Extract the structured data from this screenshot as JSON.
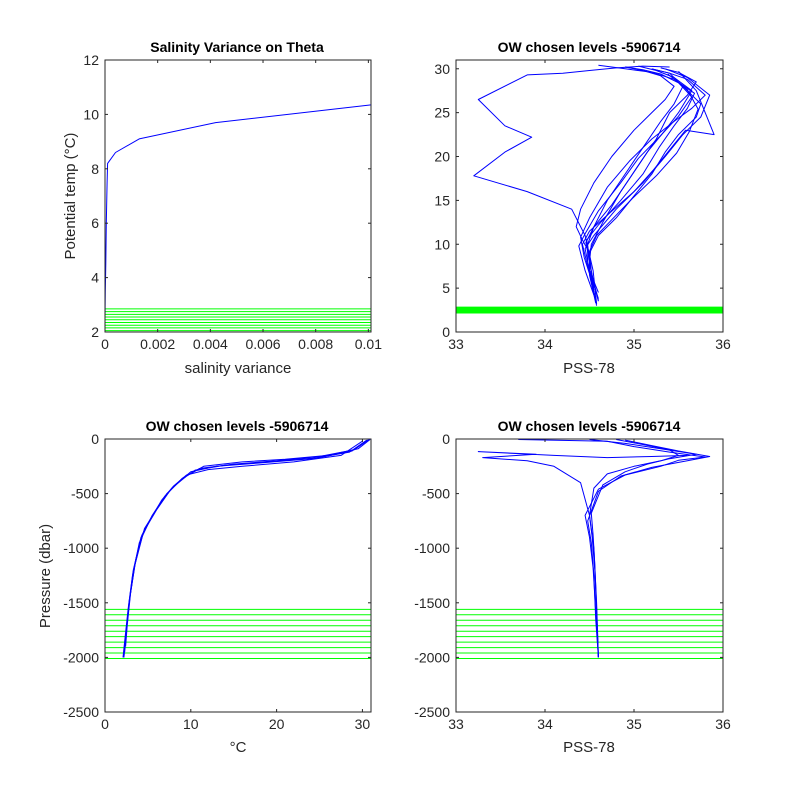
{
  "colors": {
    "profile": "#0000ff",
    "chosen_levels": "#00ff00",
    "axes": "#262626"
  },
  "chart_data": [
    {
      "type": "line",
      "title": "Salinity Variance on Theta",
      "xlabel": "salinity variance",
      "ylabel": "Potential temp (°C)",
      "xlim": [
        0,
        0.0101
      ],
      "ylim": [
        2,
        12
      ],
      "xticks": [
        0,
        0.002,
        0.004,
        0.006,
        0.008,
        0.01
      ],
      "xticklabels": [
        "0",
        "0.002",
        "0.004",
        "0.006",
        "0.008",
        "0.01"
      ],
      "yticks": [
        2,
        4,
        6,
        8,
        10,
        12
      ],
      "yticklabels": [
        "2",
        "4",
        "6",
        "8",
        "10",
        "12"
      ],
      "grid": false,
      "series": [
        {
          "x": [
            0,
            1e-05,
            3e-05,
            5e-05,
            8e-05,
            0.0001,
            0.0004,
            0.0013,
            0.0042,
            0.0101
          ],
          "y": [
            2.5,
            3.5,
            4.5,
            6.0,
            7.5,
            8.2,
            8.6,
            9.1,
            9.7,
            10.35
          ]
        }
      ],
      "chosen_levels": [
        2.05,
        2.15,
        2.25,
        2.35,
        2.45,
        2.55,
        2.65,
        2.75,
        2.85
      ]
    },
    {
      "type": "line",
      "title": "OW chosen levels -5906714",
      "xlabel": "PSS-78",
      "ylabel": "",
      "xlim": [
        33,
        36
      ],
      "ylim": [
        0,
        31
      ],
      "xticks": [
        33,
        34,
        35,
        36
      ],
      "xticklabels": [
        "33",
        "34",
        "35",
        "36"
      ],
      "yticks": [
        0,
        5,
        10,
        15,
        20,
        25,
        30
      ],
      "yticklabels": [
        "0",
        "5",
        "10",
        "15",
        "20",
        "25",
        "30"
      ],
      "grid": false,
      "series": [
        {
          "x": [
            34.58,
            34.54,
            34.5,
            34.5,
            34.42,
            34.35,
            34.4,
            34.55,
            34.75,
            35.0,
            35.2,
            35.35,
            35.45,
            35.3,
            35.1,
            34.9
          ],
          "y": [
            3,
            5,
            7,
            9,
            10.5,
            12,
            14,
            17,
            20,
            23,
            25,
            26.5,
            28,
            29.2,
            29.8,
            30.2
          ]
        },
        {
          "x": [
            34.56,
            34.52,
            34.48,
            34.48,
            34.55,
            34.7,
            34.9,
            35.1,
            35.3,
            35.45,
            35.55,
            35.4,
            35.2
          ],
          "y": [
            4,
            6,
            8,
            10,
            12,
            15,
            18,
            21,
            24,
            26,
            28,
            29.5,
            30
          ]
        },
        {
          "x": [
            34.6,
            34.55,
            34.5,
            34.52,
            34.65,
            34.85,
            35.05,
            35.25,
            35.4,
            35.6,
            35.7,
            35.5,
            35.3
          ],
          "y": [
            3.5,
            5.5,
            8,
            10,
            12.5,
            16,
            19,
            22,
            25,
            27,
            28.5,
            29.6,
            30.1
          ]
        },
        {
          "x": [
            34.6,
            34.5,
            34.45,
            34.55,
            34.8,
            35.1,
            35.35,
            35.55,
            35.75,
            35.85,
            35.6,
            35.35
          ],
          "y": [
            4.5,
            7,
            9.5,
            11,
            14,
            17,
            20,
            22.5,
            24.5,
            27,
            29,
            30
          ]
        },
        {
          "x": [
            34.58,
            34.52,
            34.44,
            34.4,
            34.5,
            34.7,
            34.95,
            35.2,
            35.45,
            35.65,
            35.8,
            35.6,
            35.4,
            35.2
          ],
          "y": [
            3.2,
            6,
            8.5,
            10.8,
            13,
            16.5,
            19.5,
            22,
            24,
            25.5,
            27,
            28.8,
            29.5,
            30
          ]
        },
        {
          "x": [
            34.55,
            34.5,
            34.46,
            34.55,
            34.75,
            34.95,
            35.15,
            35.35,
            35.5,
            35.65,
            35.45,
            35.25,
            35.05
          ],
          "y": [
            5,
            8,
            10.2,
            12,
            14.5,
            17.5,
            20.5,
            23,
            25,
            27.5,
            29,
            29.8,
            30.3
          ]
        },
        {
          "x": [
            34.6,
            34.48,
            34.42,
            34.5,
            34.72,
            35.0,
            35.22,
            35.42,
            35.58,
            35.9,
            35.7,
            35.5
          ],
          "y": [
            3.8,
            7.5,
            10,
            11.5,
            13.5,
            16,
            18.5,
            21,
            23,
            22.5,
            27.5,
            29.7
          ]
        },
        {
          "x": [
            34.57,
            34.5,
            34.5,
            34.6,
            34.8,
            35.0,
            35.2,
            35.35,
            35.5,
            35.7,
            35.75,
            35.55
          ],
          "y": [
            3.3,
            6.5,
            9,
            11,
            13,
            15.5,
            18,
            20.5,
            22.5,
            24.5,
            26,
            28
          ]
        },
        {
          "x": [
            34.55,
            34.45,
            34.38,
            34.45,
            34.6,
            34.85,
            35.05,
            35.3,
            35.5,
            35.65,
            35.5,
            35.3,
            35.1,
            34.9
          ],
          "y": [
            4.2,
            7,
            9.8,
            11.2,
            13.8,
            17,
            19.8,
            22.4,
            24.6,
            26.8,
            28.4,
            29.4,
            29.9,
            30.2
          ]
        },
        {
          "x": [
            34.6,
            34.52,
            34.5,
            34.58,
            34.75,
            34.98,
            35.25,
            35.48,
            35.62,
            35.72,
            35.6,
            35.38
          ],
          "y": [
            3.6,
            6.8,
            9.2,
            11,
            12.8,
            15.2,
            17.8,
            20.4,
            22.8,
            25.4,
            27.6,
            29.4
          ]
        },
        {
          "x": [
            34.58,
            34.54,
            34.45,
            34.3,
            33.8,
            33.2,
            33.55,
            33.85,
            33.55,
            33.25,
            33.8,
            34.2,
            34.5,
            34.8,
            35.1,
            35.4
          ],
          "y": [
            3.2,
            7,
            11,
            14,
            16,
            17.8,
            20.5,
            22.2,
            23.5,
            26.5,
            29.3,
            29.5,
            29.8,
            30.1,
            30.3,
            30.2
          ]
        },
        {
          "x": [
            34.55,
            34.5,
            34.47,
            34.6,
            34.85,
            35.1,
            35.28,
            35.45,
            35.6,
            35.68,
            35.45,
            35.2,
            34.9,
            34.6
          ],
          "y": [
            4.8,
            8.2,
            10.5,
            12.2,
            15,
            18,
            21,
            23.5,
            25.5,
            27.2,
            28.8,
            29.6,
            30,
            30.4
          ]
        }
      ],
      "chosen_levels": [
        2.2,
        2.3,
        2.4,
        2.5,
        2.6,
        2.7,
        2.8
      ]
    },
    {
      "type": "line",
      "title": "OW chosen levels -5906714",
      "xlabel": "°C",
      "ylabel": "Pressure (dbar)",
      "xlim": [
        0,
        31
      ],
      "ylim": [
        -2500,
        0
      ],
      "xticks": [
        0,
        10,
        20,
        30
      ],
      "xticklabels": [
        "0",
        "10",
        "20",
        "30"
      ],
      "yticks": [
        -2500,
        -2000,
        -1500,
        -1000,
        -500,
        0
      ],
      "yticklabels": [
        "-2500",
        "-2000",
        "-1500",
        "-1000",
        "-500",
        "0"
      ],
      "grid": false,
      "series": [
        {
          "x": [
            2.2,
            2.4,
            2.8,
            3.3,
            4.2,
            5.5,
            7.0,
            8.5,
            10.0,
            13.0,
            18.0,
            24.0,
            28.5,
            30.5
          ],
          "y": [
            -2000,
            -1800,
            -1500,
            -1200,
            -900,
            -700,
            -520,
            -400,
            -300,
            -250,
            -220,
            -180,
            -120,
            -10
          ]
        },
        {
          "x": [
            2.3,
            2.5,
            2.9,
            3.5,
            4.5,
            6.0,
            7.5,
            9.0,
            11.0,
            15.0,
            20.0,
            25.0,
            29.0,
            30.8
          ],
          "y": [
            -1950,
            -1750,
            -1450,
            -1150,
            -850,
            -650,
            -480,
            -360,
            -270,
            -230,
            -200,
            -160,
            -100,
            -5
          ]
        },
        {
          "x": [
            2.1,
            2.3,
            2.7,
            3.2,
            4.0,
            5.2,
            6.6,
            8.0,
            9.5,
            12.0,
            16.0,
            22.0,
            27.5,
            30.0
          ],
          "y": [
            -2000,
            -1850,
            -1550,
            -1250,
            -950,
            -750,
            -560,
            -430,
            -330,
            -280,
            -250,
            -210,
            -150,
            -20
          ]
        },
        {
          "x": [
            2.4,
            2.6,
            3.0,
            3.6,
            4.6,
            6.2,
            7.8,
            9.5,
            11.5,
            16.0,
            21.0,
            26.0,
            29.5,
            30.9
          ],
          "y": [
            -1900,
            -1700,
            -1400,
            -1100,
            -820,
            -620,
            -450,
            -340,
            -250,
            -210,
            -185,
            -150,
            -90,
            -5
          ]
        },
        {
          "x": [
            2.2,
            2.45,
            2.85,
            3.4,
            4.3,
            5.7,
            7.2,
            8.8,
            10.5,
            14.0,
            19.0,
            25.0,
            28.8,
            30.6
          ],
          "y": [
            -2000,
            -1780,
            -1480,
            -1180,
            -880,
            -680,
            -500,
            -380,
            -285,
            -240,
            -210,
            -170,
            -110,
            -8
          ]
        }
      ],
      "chosen_levels": [
        -1560,
        -1610,
        -1660,
        -1710,
        -1760,
        -1810,
        -1860,
        -1910,
        -1960,
        -2010
      ]
    },
    {
      "type": "line",
      "title": "OW chosen levels -5906714",
      "xlabel": "PSS-78",
      "ylabel": "",
      "xlim": [
        33,
        36
      ],
      "ylim": [
        -2500,
        0
      ],
      "xticks": [
        33,
        34,
        35,
        36
      ],
      "xticklabels": [
        "33",
        "34",
        "35",
        "36"
      ],
      "yticks": [
        -2500,
        -2000,
        -1500,
        -1000,
        -500,
        0
      ],
      "yticklabels": [
        "-2500",
        "-2000",
        "-1500",
        "-1000",
        "-500",
        "0"
      ],
      "grid": false,
      "series": [
        {
          "x": [
            34.6,
            34.58,
            34.56,
            34.53,
            34.5,
            34.55,
            34.7,
            35.0,
            35.3,
            35.5,
            35.4,
            35.1,
            34.8
          ],
          "y": [
            -2000,
            -1600,
            -1200,
            -900,
            -700,
            -450,
            -320,
            -250,
            -200,
            -150,
            -100,
            -50,
            -5
          ]
        },
        {
          "x": [
            34.6,
            34.57,
            34.55,
            34.52,
            34.48,
            34.6,
            34.85,
            35.2,
            35.6,
            35.85,
            35.5,
            35.2,
            34.9
          ],
          "y": [
            -2000,
            -1650,
            -1250,
            -950,
            -750,
            -480,
            -340,
            -260,
            -200,
            -160,
            -110,
            -60,
            -10
          ]
        },
        {
          "x": [
            34.6,
            34.58,
            34.56,
            34.54,
            34.52,
            34.65,
            34.9,
            35.15,
            35.4,
            35.7,
            35.3,
            34.9,
            34.5
          ],
          "y": [
            -2000,
            -1550,
            -1150,
            -880,
            -680,
            -420,
            -300,
            -230,
            -180,
            -140,
            -90,
            -40,
            -5
          ]
        },
        {
          "x": [
            34.6,
            34.58,
            34.55,
            34.5,
            34.4,
            34.1,
            33.8,
            33.3,
            33.9,
            33.25,
            34.1,
            34.7,
            35.2,
            35.6
          ],
          "y": [
            -2000,
            -1500,
            -1000,
            -700,
            -400,
            -250,
            -200,
            -170,
            -140,
            -115,
            -150,
            -170,
            -160,
            -150
          ]
        },
        {
          "x": [
            34.6,
            34.57,
            34.54,
            34.5,
            34.45,
            34.6,
            34.9,
            35.3,
            35.5,
            35.8,
            35.4,
            35.0,
            34.7,
            33.7
          ],
          "y": [
            -2000,
            -1580,
            -1180,
            -900,
            -700,
            -460,
            -330,
            -250,
            -195,
            -165,
            -120,
            -70,
            -20,
            -5
          ]
        }
      ],
      "chosen_levels": [
        -1560,
        -1610,
        -1660,
        -1710,
        -1760,
        -1810,
        -1860,
        -1910,
        -1960,
        -2010
      ]
    }
  ]
}
